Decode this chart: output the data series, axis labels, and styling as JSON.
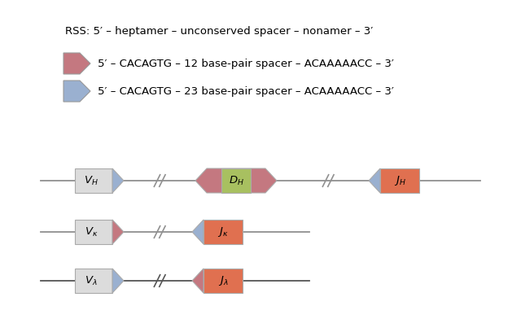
{
  "rss_text": "RSS: 5′ – heptamer – unconserved spacer – nonamer – 3′",
  "row1_text": "5′ – CACAGTG – 12 base-pair spacer – ACAAAAACC – 3′",
  "row2_text": "5′ – CACAGTG – 23 base-pair spacer – ACAAAAACC – 3′",
  "color_pink": "#c47880",
  "color_blue": "#9ab0d0",
  "color_green": "#a8c060",
  "color_orange": "#e07050",
  "color_gray_box": "#dcdcdc",
  "color_line": "#909090",
  "color_line3": "#555555",
  "font_size_main": 9.5,
  "font_size_label": 9.5,
  "fig_w": 6.4,
  "fig_h": 3.92,
  "dpi": 100
}
